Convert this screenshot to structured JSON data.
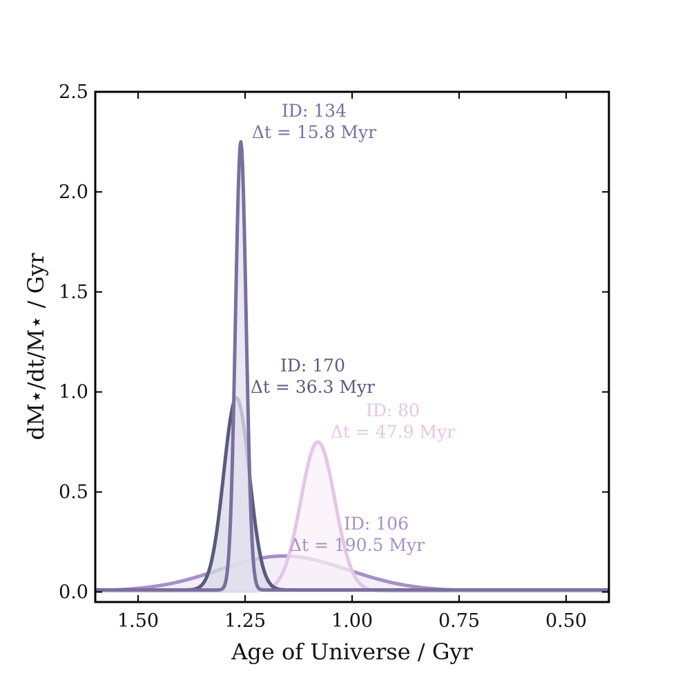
{
  "chart_data": {
    "type": "area",
    "xlabel": "Age of Universe / Gyr",
    "ylabel": "dM⋆/dt/M⋆ / Gyr",
    "xlim": [
      1.6,
      0.4
    ],
    "ylim": [
      -0.05,
      2.5
    ],
    "x_ticks": [
      1.5,
      1.25,
      1.0,
      0.75,
      0.5
    ],
    "x_tick_labels": [
      "1.50",
      "1.25",
      "1.00",
      "0.75",
      "0.50"
    ],
    "y_ticks": [
      0.0,
      0.5,
      1.0,
      1.5,
      2.0,
      2.5
    ],
    "y_tick_labels": [
      "0.0",
      "0.5",
      "1.0",
      "1.5",
      "2.0",
      "2.5"
    ],
    "grid": false,
    "legend": "none",
    "series": [
      {
        "id_label": "ID: 106",
        "dt_label": "Δt = 190.5 Myr",
        "color": "#a78fc7",
        "fill": "#efe8f6",
        "peak_x": 1.16,
        "peak_y": 0.18,
        "sigma": 0.15,
        "baseline": 0.005
      },
      {
        "id_label": "ID: 80",
        "dt_label": "Δt = 47.9 Myr",
        "color": "#e4c6e6",
        "fill": "#f9f0fa",
        "peak_x": 1.08,
        "peak_y": 0.75,
        "sigma": 0.04,
        "baseline": 0.005
      },
      {
        "id_label": "ID: 170",
        "dt_label": "Δt = 36.3 Myr",
        "color": "#585b7e",
        "fill": "#d8d8e5",
        "peak_x": 1.27,
        "peak_y": 0.97,
        "sigma": 0.03,
        "baseline": 0.01
      },
      {
        "id_label": "ID: 134",
        "dt_label": "Δt = 15.8 Myr",
        "color": "#7a6f9e",
        "fill": "#e3e0ee",
        "peak_x": 1.26,
        "peak_y": 2.25,
        "sigma": 0.0125,
        "baseline": 0.01
      }
    ]
  }
}
